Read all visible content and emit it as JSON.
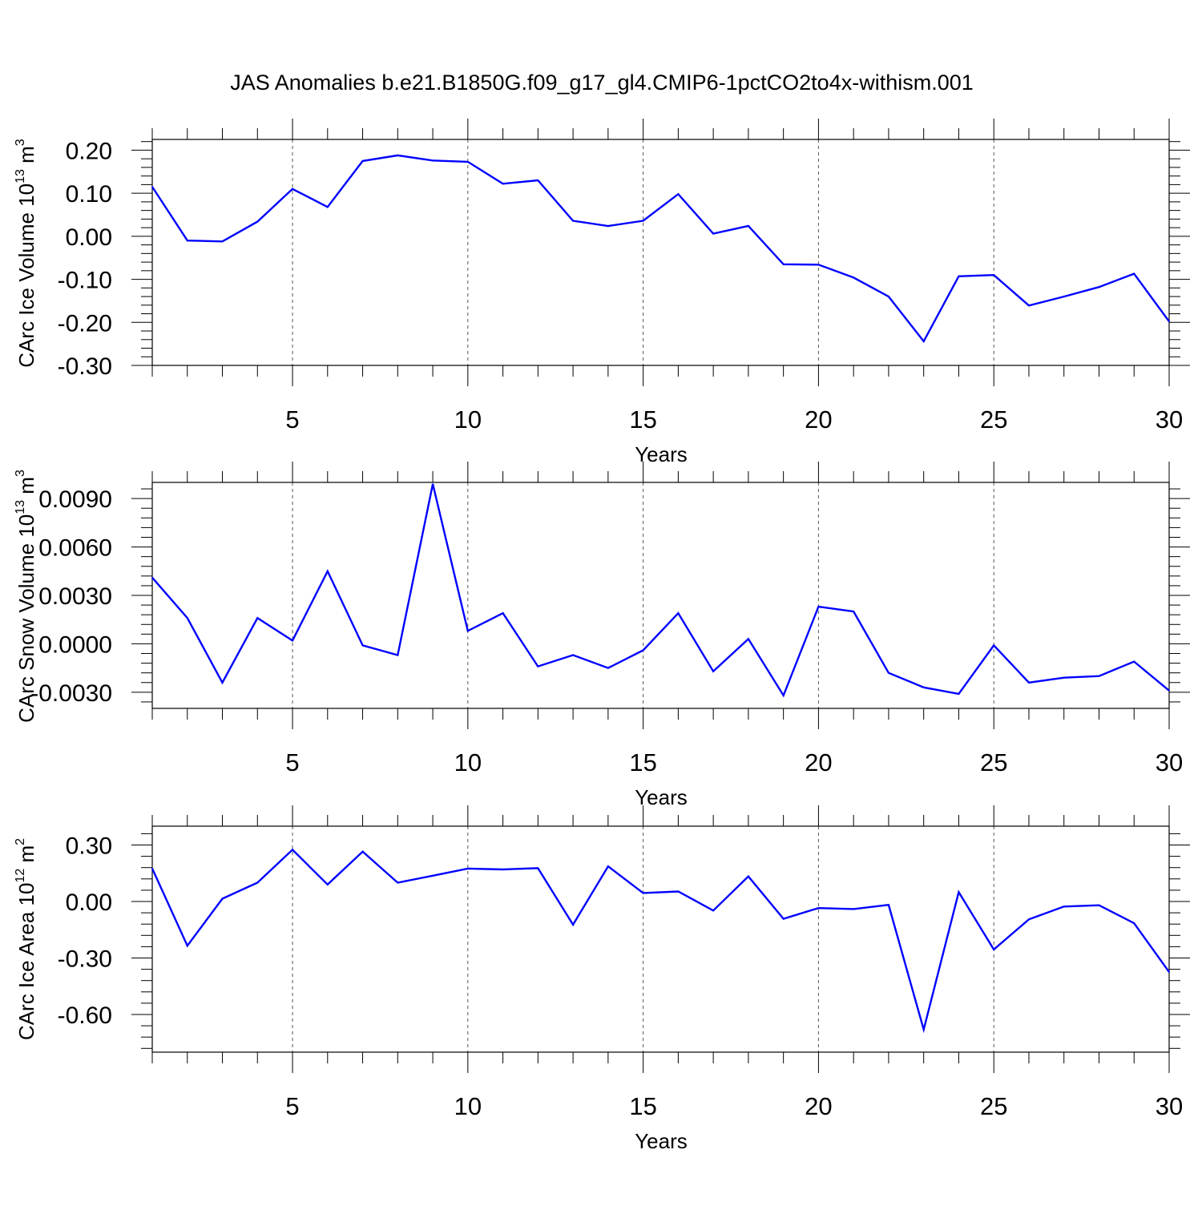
{
  "title": "JAS Anomalies b.e21.B1850G.f09_g17_gl4.CMIP6-1pctCO2to4x-withism.001",
  "colors": {
    "series": "#0000ff",
    "axis": "#000000",
    "grid": "#555555"
  },
  "chart_data": [
    {
      "type": "line",
      "ylabel_main": "CArc Ice Volume 10",
      "ylabel_exp": "13",
      "ylabel_unit": " m",
      "ylabel_unit_exp": "3",
      "xlabel": "Years",
      "xlim": [
        1,
        30
      ],
      "ylim": [
        -0.3,
        0.225
      ],
      "x_ticks": [
        "5",
        "10",
        "15",
        "20",
        "25",
        "30"
      ],
      "y_ticks": [
        "0.20",
        "0.10",
        "0.00",
        "-0.10",
        "-0.20",
        "-0.30"
      ],
      "x": [
        1,
        2,
        3,
        4,
        5,
        6,
        7,
        8,
        9,
        10,
        11,
        12,
        13,
        14,
        15,
        16,
        17,
        18,
        19,
        20,
        21,
        22,
        23,
        24,
        25,
        26,
        27,
        28,
        29,
        30
      ],
      "series": [
        {
          "name": "CArc Ice Volume",
          "values": [
            0.115,
            -0.01,
            -0.012,
            0.034,
            0.11,
            0.068,
            0.175,
            0.188,
            0.176,
            0.173,
            0.122,
            0.13,
            0.036,
            0.024,
            0.036,
            0.098,
            0.006,
            0.024,
            -0.065,
            -0.066,
            -0.096,
            -0.14,
            -0.244,
            -0.093,
            -0.09,
            -0.161,
            -0.14,
            -0.118,
            -0.087,
            -0.198
          ]
        }
      ]
    },
    {
      "type": "line",
      "ylabel_main": "CArc Snow Volume 10",
      "ylabel_exp": "13",
      "ylabel_unit": " m",
      "ylabel_unit_exp": "3",
      "xlabel": "Years",
      "xlim": [
        1,
        30
      ],
      "ylim": [
        -0.004,
        0.01
      ],
      "x_ticks": [
        "5",
        "10",
        "15",
        "20",
        "25",
        "30"
      ],
      "y_ticks": [
        "0.0090",
        "0.0060",
        "0.0030",
        "0.0000",
        "-0.0030"
      ],
      "x": [
        1,
        2,
        3,
        4,
        5,
        6,
        7,
        8,
        9,
        10,
        11,
        12,
        13,
        14,
        15,
        16,
        17,
        18,
        19,
        20,
        21,
        22,
        23,
        24,
        25,
        26,
        27,
        28,
        29,
        30
      ],
      "series": [
        {
          "name": "CArc Snow Volume",
          "values": [
            0.0041,
            0.0016,
            -0.0024,
            0.0016,
            0.0002,
            0.0045,
            -0.0001,
            -0.0007,
            0.0099,
            0.0008,
            0.0019,
            -0.0014,
            -0.0007,
            -0.0015,
            -0.0004,
            0.0019,
            -0.0017,
            0.0003,
            -0.0032,
            0.0023,
            0.002,
            -0.0018,
            -0.0027,
            -0.0031,
            -0.0001,
            -0.0024,
            -0.0021,
            -0.002,
            -0.0011,
            -0.0029
          ]
        }
      ]
    },
    {
      "type": "line",
      "ylabel_main": "CArc Ice Area 10",
      "ylabel_exp": "12",
      "ylabel_unit": " m",
      "ylabel_unit_exp": "2",
      "xlabel": "Years",
      "xlim": [
        1,
        30
      ],
      "ylim": [
        -0.8,
        0.4
      ],
      "x_ticks": [
        "5",
        "10",
        "15",
        "20",
        "25",
        "30"
      ],
      "y_ticks": [
        "0.30",
        "0.00",
        "-0.30",
        "-0.60"
      ],
      "x": [
        1,
        2,
        3,
        4,
        5,
        6,
        7,
        8,
        9,
        10,
        11,
        12,
        13,
        14,
        15,
        16,
        17,
        18,
        19,
        20,
        21,
        22,
        23,
        24,
        25,
        26,
        27,
        28,
        29,
        30
      ],
      "series": [
        {
          "name": "CArc Ice Area",
          "values": [
            0.175,
            -0.235,
            0.015,
            0.1,
            0.275,
            0.09,
            0.265,
            0.1,
            0.137,
            0.175,
            0.17,
            0.177,
            -0.123,
            0.187,
            0.045,
            0.053,
            -0.048,
            0.133,
            -0.092,
            -0.035,
            -0.04,
            -0.018,
            -0.68,
            0.05,
            -0.255,
            -0.095,
            -0.027,
            -0.02,
            -0.115,
            -0.375
          ]
        }
      ]
    }
  ]
}
